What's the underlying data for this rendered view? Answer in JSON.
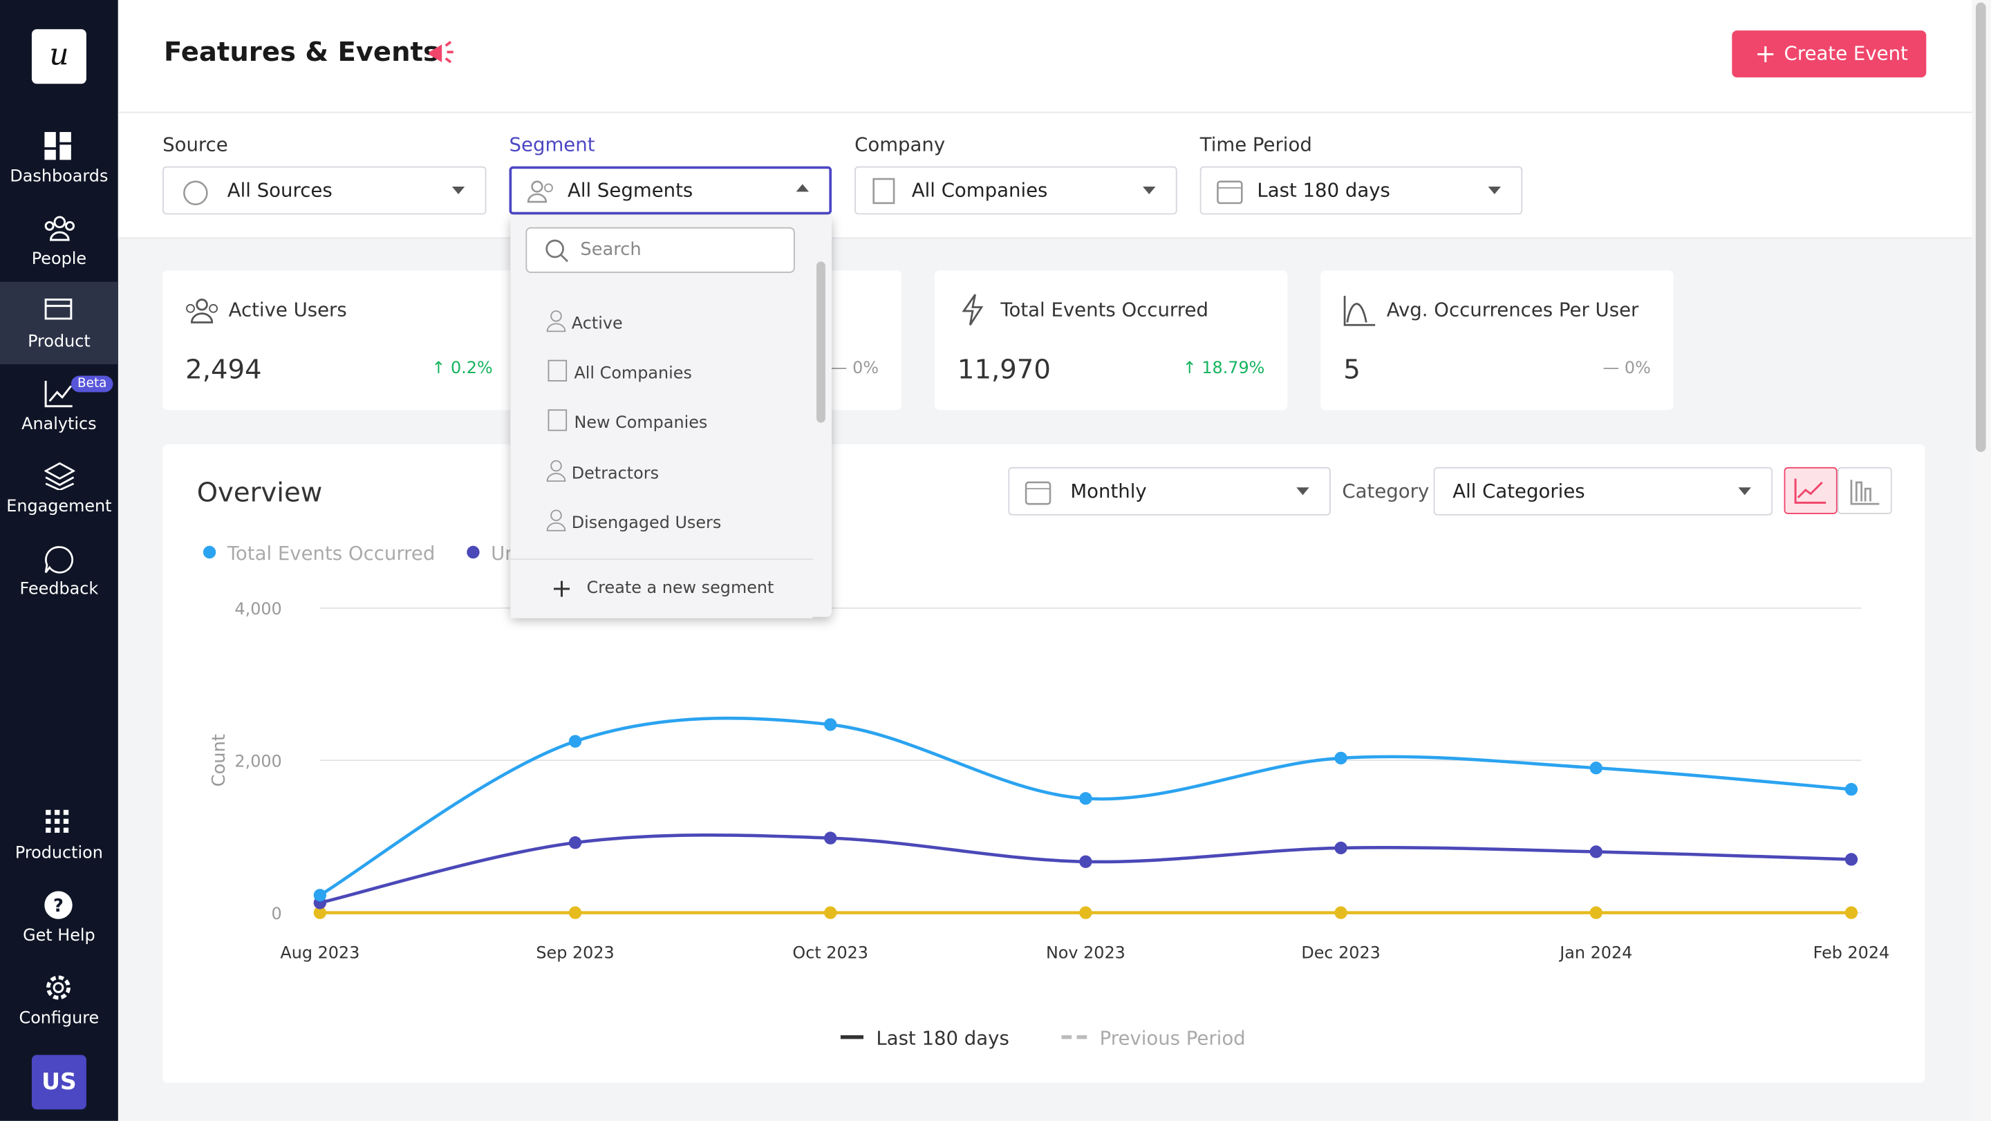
{
  "sidebar": {
    "logo": "u",
    "items": [
      "Dashboards",
      "People",
      "Product",
      "Analytics",
      "Engagement",
      "Feedback"
    ],
    "badge": "Beta",
    "bottom": [
      "Production",
      "Get Help",
      "Configure"
    ],
    "avatar": "US"
  },
  "header": {
    "title": "Features & Events",
    "button": "Create Event"
  },
  "filters": [
    {
      "label": "Source",
      "value": "All Sources"
    },
    {
      "label": "Segment",
      "value": "All Segments"
    },
    {
      "label": "Company",
      "value": "All Companies"
    },
    {
      "label": "Time Period",
      "value": "Last 180 days"
    }
  ],
  "dropdown": {
    "search": "Search",
    "items": [
      "Active",
      "All Companies",
      "New Companies",
      "Detractors",
      "Disengaged Users"
    ],
    "create": "Create a new segment"
  },
  "stats": [
    {
      "title": "Active Users",
      "value": "2,494",
      "change": "0.2%"
    },
    {
      "change": "0%"
    },
    {
      "title": "Total Events Occurred",
      "value": "11,970",
      "change": "18.79%"
    },
    {
      "title": "Avg. Occurrences Per User",
      "value": "5",
      "change": "0%"
    }
  ],
  "overview": {
    "title": "Overview",
    "interval": "Monthly",
    "category_label": "Category",
    "category": "All Categories",
    "periods": [
      "Last 180 days",
      "Previous Period"
    ]
  },
  "chart_data": {
    "type": "line",
    "y_label": "Count",
    "categories": [
      "Aug 2023",
      "Sep 2023",
      "Oct 2023",
      "Nov 2023",
      "Dec 2023",
      "Jan 2024",
      "Feb 2024"
    ],
    "series": [
      {
        "name": "Total Events Occurred",
        "color": "#2ba3f0",
        "values": [
          230,
          2250,
          2470,
          1500,
          2030,
          1900,
          1620
        ]
      },
      {
        "name": "Unique Users",
        "color": "#4b48b8",
        "values": [
          130,
          920,
          980,
          670,
          850,
          800,
          700
        ]
      },
      {
        "color": "#e6bb1e",
        "values": [
          0,
          0,
          0,
          0,
          0,
          0,
          0
        ]
      }
    ],
    "ylim": [
      0,
      4000
    ],
    "yticks": [
      0,
      {
        "value": 2000,
        "label": "2,000"
      },
      {
        "value": 4000,
        "label": "4,000"
      }
    ],
    "grid": true
  }
}
